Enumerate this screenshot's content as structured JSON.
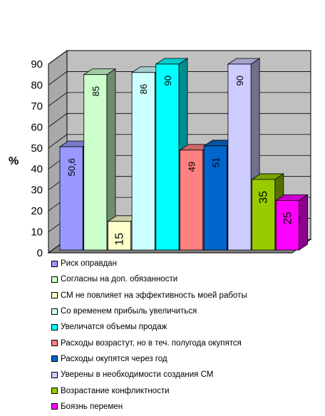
{
  "chart_data": {
    "type": "bar",
    "ylabel": "%",
    "ylim": [
      0,
      90
    ],
    "yticks": [
      "0",
      "10",
      "20",
      "30",
      "40",
      "50",
      "60",
      "70",
      "80",
      "90"
    ],
    "grid": true,
    "legend_position": "bottom",
    "series": [
      {
        "name": "Риск оправдан",
        "value": 50.6,
        "label": "50,6",
        "color": "#9999ff"
      },
      {
        "name": "Согласны на доп. обязанности",
        "value": 85,
        "label": "85",
        "color": "#ccffcc"
      },
      {
        "name": "СМ не повлияет на эффективность моей работы",
        "value": 15,
        "label": "15",
        "color": "#ffffcc"
      },
      {
        "name": "Со временем прибыль увеличиться",
        "value": 86,
        "label": "86",
        "color": "#ccffff"
      },
      {
        "name": "Увеличатся объемы продаж",
        "value": 90,
        "label": "90",
        "color": "#00ffff"
      },
      {
        "name": "Расходы возрастут, но в теч. полугода окупятся",
        "value": 49,
        "label": "49",
        "color": "#ff8080"
      },
      {
        "name": "Расходы окупятся через год",
        "value": 51,
        "label": "51",
        "color": "#0066cc"
      },
      {
        "name": "Уверены в необходимости создания СМ",
        "value": 90,
        "label": "90",
        "color": "#ccccff"
      },
      {
        "name": "Возрастание конфликтности",
        "value": 35,
        "label": "35",
        "color": "#99cc00"
      },
      {
        "name": "Боязнь перемен",
        "value": 25,
        "label": "25",
        "color": "#ff00ff"
      }
    ]
  }
}
